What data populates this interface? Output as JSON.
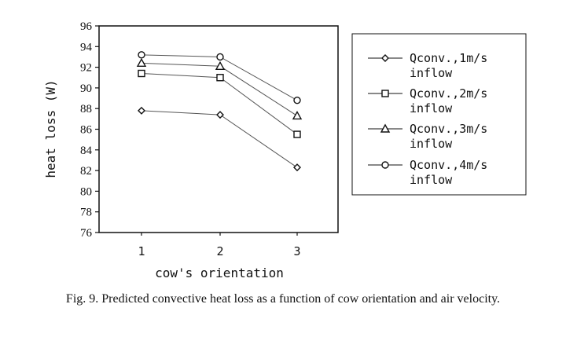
{
  "chart_data": {
    "type": "line",
    "xlabel": "cow's orientation",
    "ylabel": "heat loss (W)",
    "x": [
      1,
      2,
      3
    ],
    "x_ticks": [
      "1",
      "2",
      "3"
    ],
    "ylim": [
      76,
      96
    ],
    "y_ticks": [
      "96",
      "94",
      "92",
      "90",
      "88",
      "86",
      "84",
      "82",
      "80",
      "78",
      "76"
    ],
    "grid": false,
    "legend_position": "right",
    "series": [
      {
        "name": "Qconv.,1m/s inflow",
        "legend_lines": [
          "Qconv.,1m/s",
          "inflow"
        ],
        "marker": "diamond",
        "values": [
          87.8,
          87.4,
          82.3
        ]
      },
      {
        "name": "Qconv.,2m/s inflow",
        "legend_lines": [
          "Qconv.,2m/s",
          "inflow"
        ],
        "marker": "square",
        "values": [
          91.4,
          91.0,
          85.5
        ]
      },
      {
        "name": "Qconv.,3m/s inflow",
        "legend_lines": [
          "Qconv.,3m/s",
          "inflow"
        ],
        "marker": "triangle",
        "values": [
          92.4,
          92.1,
          87.3
        ]
      },
      {
        "name": "Qconv.,4m/s inflow",
        "legend_lines": [
          "Qconv.,4m/s",
          "inflow"
        ],
        "marker": "circle",
        "values": [
          93.2,
          93.0,
          88.8
        ]
      }
    ]
  },
  "caption": "Fig. 9.  Predicted convective heat loss as a function of cow orientation and air velocity."
}
